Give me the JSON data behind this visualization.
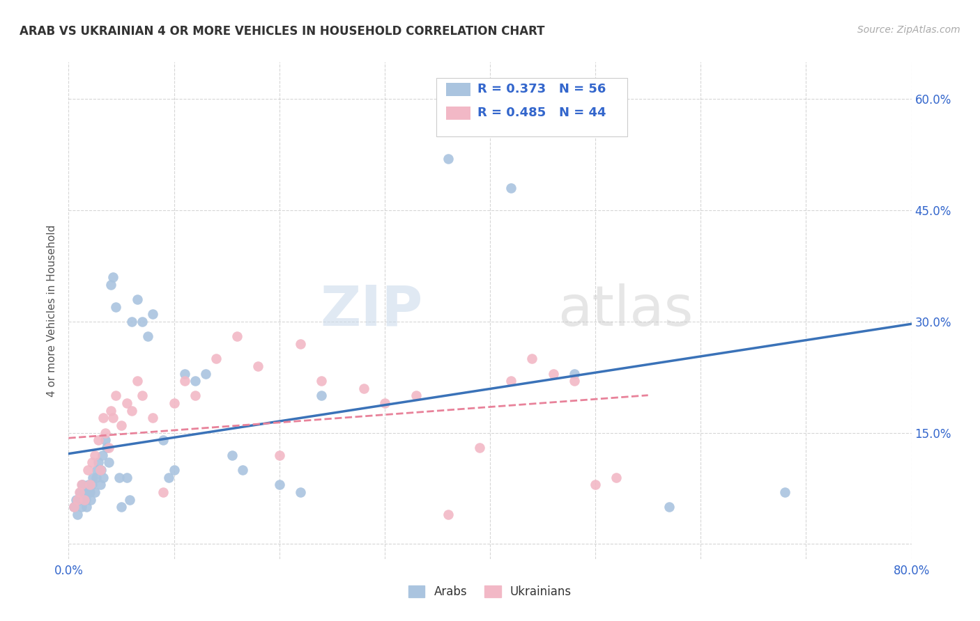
{
  "title": "ARAB VS UKRAINIAN 4 OR MORE VEHICLES IN HOUSEHOLD CORRELATION CHART",
  "source": "Source: ZipAtlas.com",
  "ylabel": "4 or more Vehicles in Household",
  "xlim": [
    0.0,
    0.8
  ],
  "ylim": [
    -0.02,
    0.65
  ],
  "xticks": [
    0.0,
    0.1,
    0.2,
    0.3,
    0.4,
    0.5,
    0.6,
    0.7,
    0.8
  ],
  "xticklabels": [
    "0.0%",
    "",
    "",
    "",
    "",
    "",
    "",
    "",
    "80.0%"
  ],
  "yticks": [
    0.0,
    0.15,
    0.3,
    0.45,
    0.6
  ],
  "yticklabels_right": [
    "",
    "15.0%",
    "30.0%",
    "45.0%",
    "60.0%"
  ],
  "arab_color": "#aac4df",
  "ukrainian_color": "#f2b8c6",
  "arab_line_color": "#3a72b8",
  "ukrainian_line_color": "#e8829a",
  "arab_R": 0.373,
  "arab_N": 56,
  "ukrainian_R": 0.485,
  "ukrainian_N": 44,
  "watermark_zip": "ZIP",
  "watermark_atlas": "atlas",
  "arab_x": [
    0.005,
    0.007,
    0.008,
    0.01,
    0.011,
    0.012,
    0.013,
    0.014,
    0.015,
    0.016,
    0.017,
    0.018,
    0.019,
    0.02,
    0.021,
    0.022,
    0.023,
    0.025,
    0.026,
    0.027,
    0.028,
    0.03,
    0.031,
    0.032,
    0.033,
    0.035,
    0.036,
    0.038,
    0.04,
    0.042,
    0.045,
    0.048,
    0.05,
    0.055,
    0.058,
    0.06,
    0.065,
    0.07,
    0.075,
    0.08,
    0.09,
    0.095,
    0.1,
    0.11,
    0.12,
    0.13,
    0.155,
    0.165,
    0.2,
    0.22,
    0.24,
    0.36,
    0.42,
    0.48,
    0.57,
    0.68
  ],
  "arab_y": [
    0.05,
    0.06,
    0.04,
    0.06,
    0.07,
    0.05,
    0.08,
    0.06,
    0.07,
    0.06,
    0.05,
    0.07,
    0.08,
    0.07,
    0.06,
    0.08,
    0.09,
    0.07,
    0.09,
    0.1,
    0.11,
    0.08,
    0.1,
    0.12,
    0.09,
    0.14,
    0.13,
    0.11,
    0.35,
    0.36,
    0.32,
    0.09,
    0.05,
    0.09,
    0.06,
    0.3,
    0.33,
    0.3,
    0.28,
    0.31,
    0.14,
    0.09,
    0.1,
    0.23,
    0.22,
    0.23,
    0.12,
    0.1,
    0.08,
    0.07,
    0.2,
    0.52,
    0.48,
    0.23,
    0.05,
    0.07
  ],
  "ukrainian_x": [
    0.005,
    0.008,
    0.01,
    0.012,
    0.015,
    0.018,
    0.02,
    0.022,
    0.025,
    0.028,
    0.03,
    0.033,
    0.035,
    0.038,
    0.04,
    0.042,
    0.045,
    0.05,
    0.055,
    0.06,
    0.065,
    0.07,
    0.08,
    0.09,
    0.1,
    0.11,
    0.12,
    0.14,
    0.16,
    0.18,
    0.2,
    0.22,
    0.24,
    0.28,
    0.3,
    0.33,
    0.36,
    0.39,
    0.42,
    0.44,
    0.46,
    0.48,
    0.5,
    0.52
  ],
  "ukrainian_y": [
    0.05,
    0.06,
    0.07,
    0.08,
    0.06,
    0.1,
    0.08,
    0.11,
    0.12,
    0.14,
    0.1,
    0.17,
    0.15,
    0.13,
    0.18,
    0.17,
    0.2,
    0.16,
    0.19,
    0.18,
    0.22,
    0.2,
    0.17,
    0.07,
    0.19,
    0.22,
    0.2,
    0.25,
    0.28,
    0.24,
    0.12,
    0.27,
    0.22,
    0.21,
    0.19,
    0.2,
    0.04,
    0.13,
    0.22,
    0.25,
    0.23,
    0.22,
    0.08,
    0.09
  ]
}
